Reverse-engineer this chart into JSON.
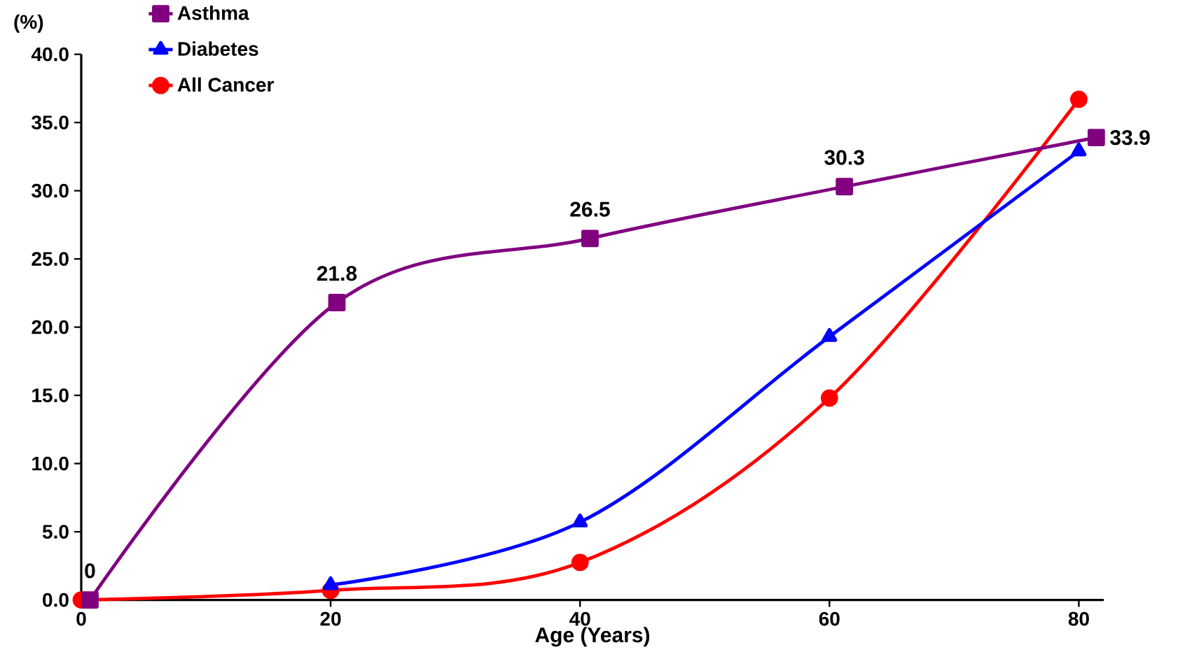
{
  "chart_data": {
    "type": "line",
    "xlabel": "Age (Years)",
    "ylabel": "(%)",
    "xlim": [
      0,
      82
    ],
    "xticks": [
      0,
      20,
      40,
      60,
      80
    ],
    "ylim": [
      0,
      40
    ],
    "yticks": [
      {
        "value": 0,
        "label": "0.0"
      },
      {
        "value": 5,
        "label": "5.0"
      },
      {
        "value": 10,
        "label": "10.0"
      },
      {
        "value": 15,
        "label": "15.0"
      },
      {
        "value": 20,
        "label": "20.0"
      },
      {
        "value": 25,
        "label": "25.0"
      },
      {
        "value": 30,
        "label": "30.0"
      },
      {
        "value": 35,
        "label": "35.0"
      },
      {
        "value": 40,
        "label": "40.0"
      }
    ],
    "legend": "top left",
    "grid": false,
    "series": [
      {
        "name": "Asthma",
        "color": "#800080",
        "marker": "square",
        "x": [
          0.7,
          20.5,
          40.8,
          61.2,
          81.4
        ],
        "values": [
          0,
          21.8,
          26.5,
          30.3,
          33.9
        ],
        "value_labels": [
          "0",
          "21.8",
          "26.5",
          "30.3",
          "33.9"
        ]
      },
      {
        "name": "Diabetes",
        "color": "#0000ff",
        "marker": "triangle",
        "x": [
          20,
          40,
          60,
          80
        ],
        "values": [
          1.1,
          5.7,
          19.3,
          32.9
        ]
      },
      {
        "name": "All Cancer",
        "color": "#ff0000",
        "marker": "circle",
        "x": [
          0,
          20,
          40,
          60,
          80
        ],
        "values": [
          0,
          0.7,
          2.75,
          14.8,
          36.7
        ]
      }
    ]
  }
}
